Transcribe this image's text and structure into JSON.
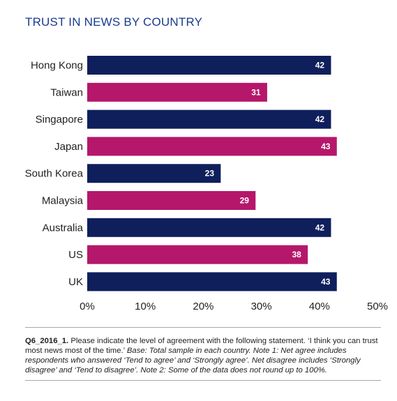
{
  "title": "TRUST IN NEWS BY COUNTRY",
  "chart_data": {
    "type": "bar",
    "orientation": "horizontal",
    "title": "TRUST IN NEWS BY COUNTRY",
    "categories": [
      "Hong Kong",
      "Taiwan",
      "Singapore",
      "Japan",
      "South Korea",
      "Malaysia",
      "Australia",
      "US",
      "UK"
    ],
    "values": [
      42,
      31,
      42,
      43,
      23,
      29,
      42,
      38,
      43
    ],
    "value_labels": [
      "42",
      "31",
      "42",
      "43",
      "23",
      "29",
      "42",
      "38",
      "43"
    ],
    "colors": [
      "#0f1f5c",
      "#b5176b",
      "#0f1f5c",
      "#b5176b",
      "#0f1f5c",
      "#b5176b",
      "#0f1f5c",
      "#b5176b",
      "#0f1f5c"
    ],
    "x_ticks": [
      "0%",
      "10%",
      "20%",
      "30%",
      "40%",
      "50%"
    ],
    "xlim": [
      0,
      50
    ],
    "grid": false,
    "legend": "none"
  },
  "note": {
    "question_id": "Q6_2016_1.",
    "question_text": " Please indicate the level of agreement with the following statement. ‘I think you can trust most news most of the time.’ ",
    "base_text": "Base: Total sample in each country. Note 1: Net agree includes respondents who answered ‘Tend to agree’ and ‘Strongly agree’. Net disagree includes ‘Strongly disagree’ and ‘Tend to disagree’. Note 2: Some of the data does not round up to 100%."
  }
}
